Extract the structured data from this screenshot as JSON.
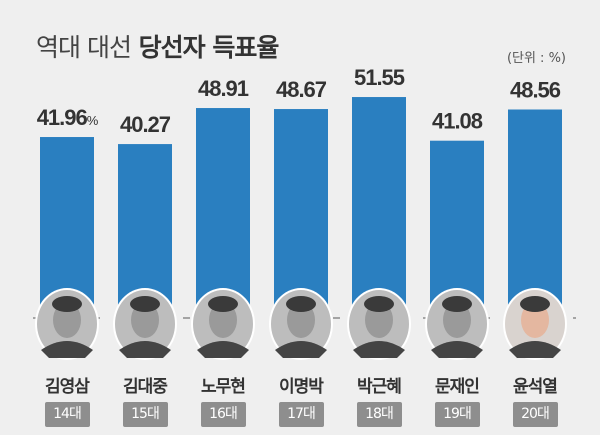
{
  "chart_data": {
    "type": "bar",
    "title_light": "역대 대선",
    "title_bold": "당선자 득표율",
    "unit_label": "(단위 : %)",
    "first_value_suffix": "%",
    "categories": [
      "김영삼",
      "김대중",
      "노무현",
      "이명박",
      "박근혜",
      "문재인",
      "윤석열"
    ],
    "terms": [
      "14대",
      "15대",
      "16대",
      "17대",
      "18대",
      "19대",
      "20대"
    ],
    "values": [
      41.96,
      40.27,
      48.91,
      48.67,
      51.55,
      41.08,
      48.56
    ],
    "value_labels": [
      "41.96",
      "40.27",
      "48.91",
      "48.67",
      "51.55",
      "41.08",
      "48.56"
    ],
    "ylim": [
      0,
      55
    ],
    "grid": false,
    "legend": "none",
    "bar_color": "#2a7fc0",
    "has_portrait_photos": true
  }
}
